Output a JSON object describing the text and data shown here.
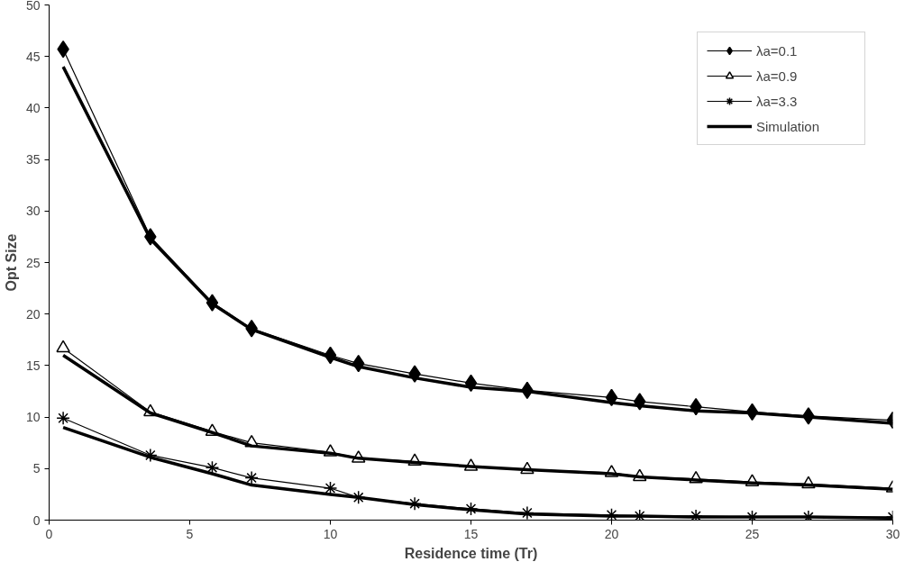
{
  "chart_data": {
    "type": "line",
    "xlabel": "Residence time (Tr)",
    "ylabel": "Opt Size",
    "x": [
      0.5,
      3.6,
      5.8,
      7.2,
      10,
      11,
      13,
      15,
      17,
      20,
      21,
      23,
      25,
      27,
      30
    ],
    "series": [
      {
        "name": "λa=0.1",
        "color": "#000000",
        "marker": "diamond",
        "values": [
          45.7,
          27.5,
          21.1,
          18.6,
          16.0,
          15.2,
          14.2,
          13.3,
          12.6,
          11.9,
          11.5,
          11.0,
          10.5,
          10.1,
          9.7
        ]
      },
      {
        "name": "λa=0.9",
        "color": "#000000",
        "marker": "triangle",
        "values": [
          16.7,
          10.5,
          8.6,
          7.5,
          6.6,
          6.0,
          5.7,
          5.2,
          4.9,
          4.6,
          4.2,
          4.0,
          3.7,
          3.5,
          3.1
        ]
      },
      {
        "name": "λa=3.3",
        "color": "#000000",
        "marker": "cross",
        "values": [
          9.9,
          6.3,
          5.1,
          4.1,
          3.1,
          2.2,
          1.6,
          1.1,
          0.7,
          0.5,
          0.4,
          0.4,
          0.3,
          0.3,
          0.3
        ]
      },
      {
        "name": "Simulation",
        "color": "#000000",
        "marker": "none",
        "values": [
          44,
          27.3,
          21,
          18.5,
          15.8,
          14.9,
          13.8,
          12.9,
          12.5,
          11.4,
          11.1,
          10.6,
          10.4,
          10.0,
          9.4
        ]
      },
      {
        "color": "#000000",
        "marker": "none",
        "values": [
          16,
          10.4,
          8.5,
          7.2,
          6.5,
          6.0,
          5.6,
          5.2,
          4.9,
          4.5,
          4.2,
          3.9,
          3.6,
          3.4,
          3.0
        ]
      },
      {
        "color": "#000000",
        "marker": "none",
        "values": [
          9,
          6.1,
          4.5,
          3.4,
          2.5,
          2.2,
          1.5,
          1.0,
          0.6,
          0.4,
          0.4,
          0.3,
          0.3,
          0.3,
          0.2
        ]
      }
    ],
    "xlim": [
      0,
      30
    ],
    "xticks": [
      0,
      5,
      10,
      15,
      20,
      25,
      30
    ],
    "ylim": [
      0,
      50
    ],
    "yticks": [
      0,
      5,
      10,
      15,
      20,
      25,
      30,
      35,
      40,
      45,
      50
    ],
    "grid": false,
    "legend": "top right",
    "line_style": "solid"
  }
}
